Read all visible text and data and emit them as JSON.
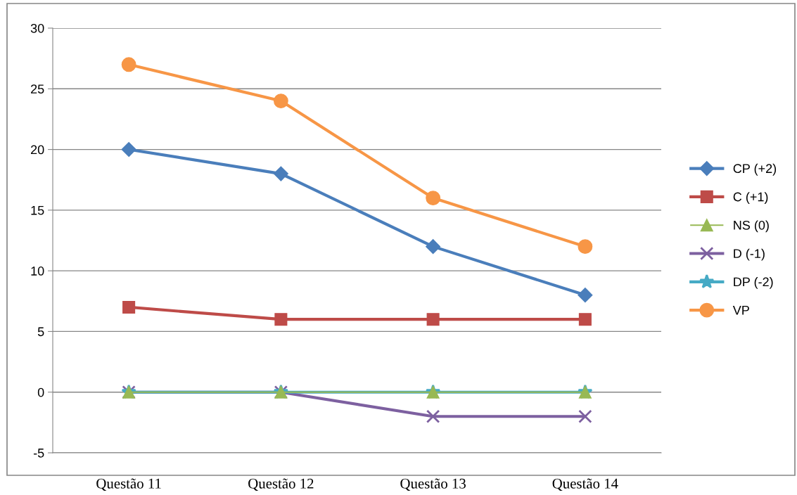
{
  "chart_data": {
    "type": "line",
    "categories": [
      "Questão 11",
      "Questão 12",
      "Questão 13",
      "Questão 14"
    ],
    "series": [
      {
        "name": "CP (+2)",
        "color": "#4a7ebb",
        "marker": "diamond",
        "values": [
          20,
          18,
          12,
          8
        ]
      },
      {
        "name": "C (+1)",
        "color": "#be4b48",
        "marker": "square",
        "values": [
          7,
          6,
          6,
          6
        ]
      },
      {
        "name": "NS (0)",
        "color": "#98b954",
        "marker": "triangle",
        "values": [
          0,
          0,
          0,
          0
        ]
      },
      {
        "name": "D (-1)",
        "color": "#7d60a0",
        "marker": "cross",
        "values": [
          0,
          0,
          -2,
          -2
        ]
      },
      {
        "name": "DP (-2)",
        "color": "#46aac5",
        "marker": "star",
        "values": [
          0,
          0,
          0,
          0
        ]
      },
      {
        "name": "VP",
        "color": "#f79646",
        "marker": "circle",
        "values": [
          27,
          24,
          16,
          12
        ]
      }
    ],
    "ylim": [
      -5,
      30
    ],
    "yticks": [
      -5,
      0,
      5,
      10,
      15,
      20,
      25,
      30
    ],
    "grid": "y",
    "legend": "right",
    "line_style": "solid"
  }
}
